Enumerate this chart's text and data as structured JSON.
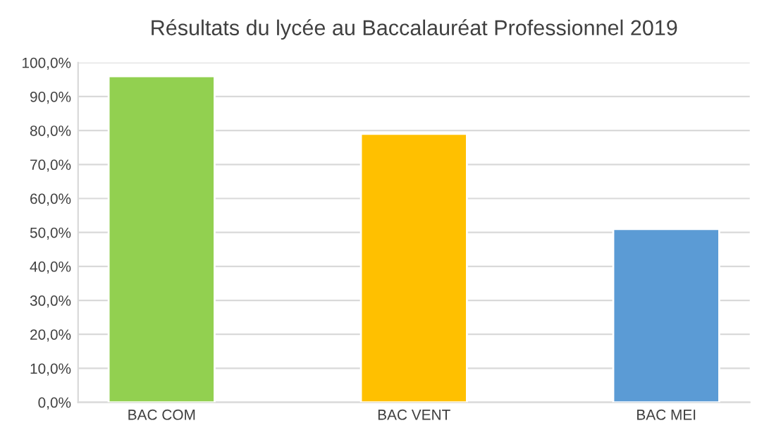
{
  "chart_data": {
    "type": "bar",
    "title": "Résultats du lycée au Baccalauréat Professionnel 2019",
    "categories": [
      "BAC COM",
      "BAC VENT",
      "BAC MEI"
    ],
    "values": [
      96,
      79,
      51
    ],
    "colors": [
      "#92d050",
      "#ffc000",
      "#5b9bd5"
    ],
    "ylim": [
      0,
      100
    ],
    "yticks": [
      {
        "value": 0,
        "label": "0,0%"
      },
      {
        "value": 10,
        "label": "10,0%"
      },
      {
        "value": 20,
        "label": "20,0%"
      },
      {
        "value": 30,
        "label": "30,0%"
      },
      {
        "value": 40,
        "label": "40,0%"
      },
      {
        "value": 50,
        "label": "50,0%"
      },
      {
        "value": 60,
        "label": "60,0%"
      },
      {
        "value": 70,
        "label": "70,0%"
      },
      {
        "value": 80,
        "label": "80,0%"
      },
      {
        "value": 90,
        "label": "90,0%"
      },
      {
        "value": 100,
        "label": "100,0%"
      }
    ],
    "grid": "y"
  }
}
